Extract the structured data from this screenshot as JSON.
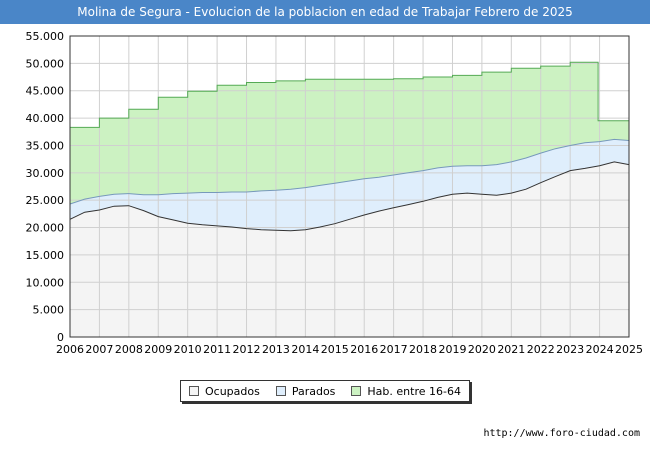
{
  "chart_data": {
    "type": "area",
    "title": "Molina de Segura - Evolucion de la poblacion en edad de Trabajar Febrero de 2025",
    "xlabel": "",
    "ylabel": "",
    "x_ticks": [
      "2006",
      "2007",
      "2008",
      "2009",
      "2010",
      "2011",
      "2012",
      "2013",
      "2014",
      "2015",
      "2016",
      "2017",
      "2018",
      "2019",
      "2020",
      "2021",
      "2022",
      "2023",
      "2024",
      "2025"
    ],
    "y_ticks": [
      "0",
      "5.000",
      "10.000",
      "15.000",
      "20.000",
      "25.000",
      "30.000",
      "35.000",
      "40.000",
      "45.000",
      "50.000",
      "55.000"
    ],
    "xlim": [
      2006,
      2025
    ],
    "ylim": [
      0,
      55000
    ],
    "grid": true,
    "legend_position": "bottom-center",
    "series": [
      {
        "name": "Ocupados",
        "color": "#f4f4f4",
        "line_color": "#333333",
        "x": [
          2006,
          2006.5,
          2007,
          2007.5,
          2008,
          2008.5,
          2009,
          2009.5,
          2010,
          2010.5,
          2011,
          2011.5,
          2012,
          2012.5,
          2013,
          2013.5,
          2014,
          2014.5,
          2015,
          2015.5,
          2016,
          2016.5,
          2017,
          2017.5,
          2018,
          2018.5,
          2019,
          2019.5,
          2020,
          2020.5,
          2021,
          2021.5,
          2022,
          2022.5,
          2023,
          2023.5,
          2024,
          2024.5,
          2025
        ],
        "values": [
          21500,
          22800,
          23200,
          23900,
          24000,
          23100,
          22000,
          21400,
          20800,
          20500,
          20300,
          20100,
          19800,
          19600,
          19500,
          19400,
          19600,
          20100,
          20700,
          21500,
          22300,
          23000,
          23600,
          24200,
          24800,
          25500,
          26100,
          26300,
          26100,
          25900,
          26300,
          27000,
          28200,
          29300,
          30400,
          30800,
          31300,
          32000,
          31500
        ]
      },
      {
        "name": "Parados",
        "color": "#dfeefc",
        "line_color": "#7799bb",
        "x": [
          2006,
          2006.5,
          2007,
          2007.5,
          2008,
          2008.5,
          2009,
          2009.5,
          2010,
          2010.5,
          2011,
          2011.5,
          2012,
          2012.5,
          2013,
          2013.5,
          2014,
          2014.5,
          2015,
          2015.5,
          2016,
          2016.5,
          2017,
          2017.5,
          2018,
          2018.5,
          2019,
          2019.5,
          2020,
          2020.5,
          2021,
          2021.5,
          2022,
          2022.5,
          2023,
          2023.5,
          2024,
          2024.5,
          2025
        ],
        "values": [
          24300,
          25200,
          25700,
          26100,
          26200,
          26000,
          26000,
          26200,
          26300,
          26400,
          26400,
          26500,
          26500,
          26700,
          26800,
          27000,
          27300,
          27700,
          28100,
          28500,
          28900,
          29200,
          29600,
          30000,
          30400,
          30900,
          31200,
          31300,
          31300,
          31500,
          32000,
          32700,
          33600,
          34400,
          35000,
          35500,
          35700,
          36100,
          35900
        ]
      },
      {
        "name": "Hab. entre 16-64",
        "color": "#ccf2c2",
        "line_color": "#55aa55",
        "x": [
          2006,
          2007,
          2007,
          2008,
          2008,
          2009,
          2009,
          2010,
          2010,
          2011,
          2011,
          2012,
          2012,
          2013,
          2013,
          2014,
          2014,
          2015,
          2015,
          2016,
          2016,
          2017,
          2017,
          2018,
          2018,
          2019,
          2019,
          2020,
          2020,
          2021,
          2021,
          2022,
          2022,
          2023,
          2023,
          2023.95,
          2023.95,
          2025
        ],
        "values": [
          38300,
          38300,
          40000,
          40000,
          41600,
          41600,
          43800,
          43800,
          44900,
          44900,
          46000,
          46000,
          46500,
          46500,
          46800,
          46800,
          47100,
          47100,
          47100,
          47100,
          47100,
          47100,
          47200,
          47200,
          47500,
          47500,
          47800,
          47800,
          48400,
          48400,
          49100,
          49100,
          49500,
          49500,
          50200,
          50200,
          39500,
          39500
        ]
      }
    ]
  },
  "watermark": "FORO-CIUDAD.COM",
  "source": "http://www.foro-ciudad.com"
}
